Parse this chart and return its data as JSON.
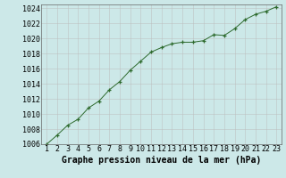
{
  "x": [
    1,
    2,
    3,
    4,
    5,
    6,
    7,
    8,
    9,
    10,
    11,
    12,
    13,
    14,
    15,
    16,
    17,
    18,
    19,
    20,
    21,
    22,
    23
  ],
  "y": [
    1006.0,
    1007.2,
    1008.5,
    1009.3,
    1010.8,
    1011.7,
    1013.2,
    1014.3,
    1015.8,
    1017.0,
    1018.2,
    1018.8,
    1019.3,
    1019.5,
    1019.5,
    1019.7,
    1020.5,
    1020.4,
    1021.3,
    1022.5,
    1023.2,
    1023.6,
    1024.2
  ],
  "ylim": [
    1006,
    1024
  ],
  "yticks": [
    1006,
    1008,
    1010,
    1012,
    1014,
    1016,
    1018,
    1020,
    1022,
    1024
  ],
  "xticks": [
    1,
    2,
    3,
    4,
    5,
    6,
    7,
    8,
    9,
    10,
    11,
    12,
    13,
    14,
    15,
    16,
    17,
    18,
    19,
    20,
    21,
    22,
    23
  ],
  "line_color": "#2d6a2d",
  "marker_color": "#2d6a2d",
  "bg_color": "#cce8e8",
  "grid_color": "#bbbbbb",
  "xlabel": "Graphe pression niveau de la mer (hPa)",
  "xlabel_fontsize": 7,
  "tick_fontsize": 6,
  "title": ""
}
